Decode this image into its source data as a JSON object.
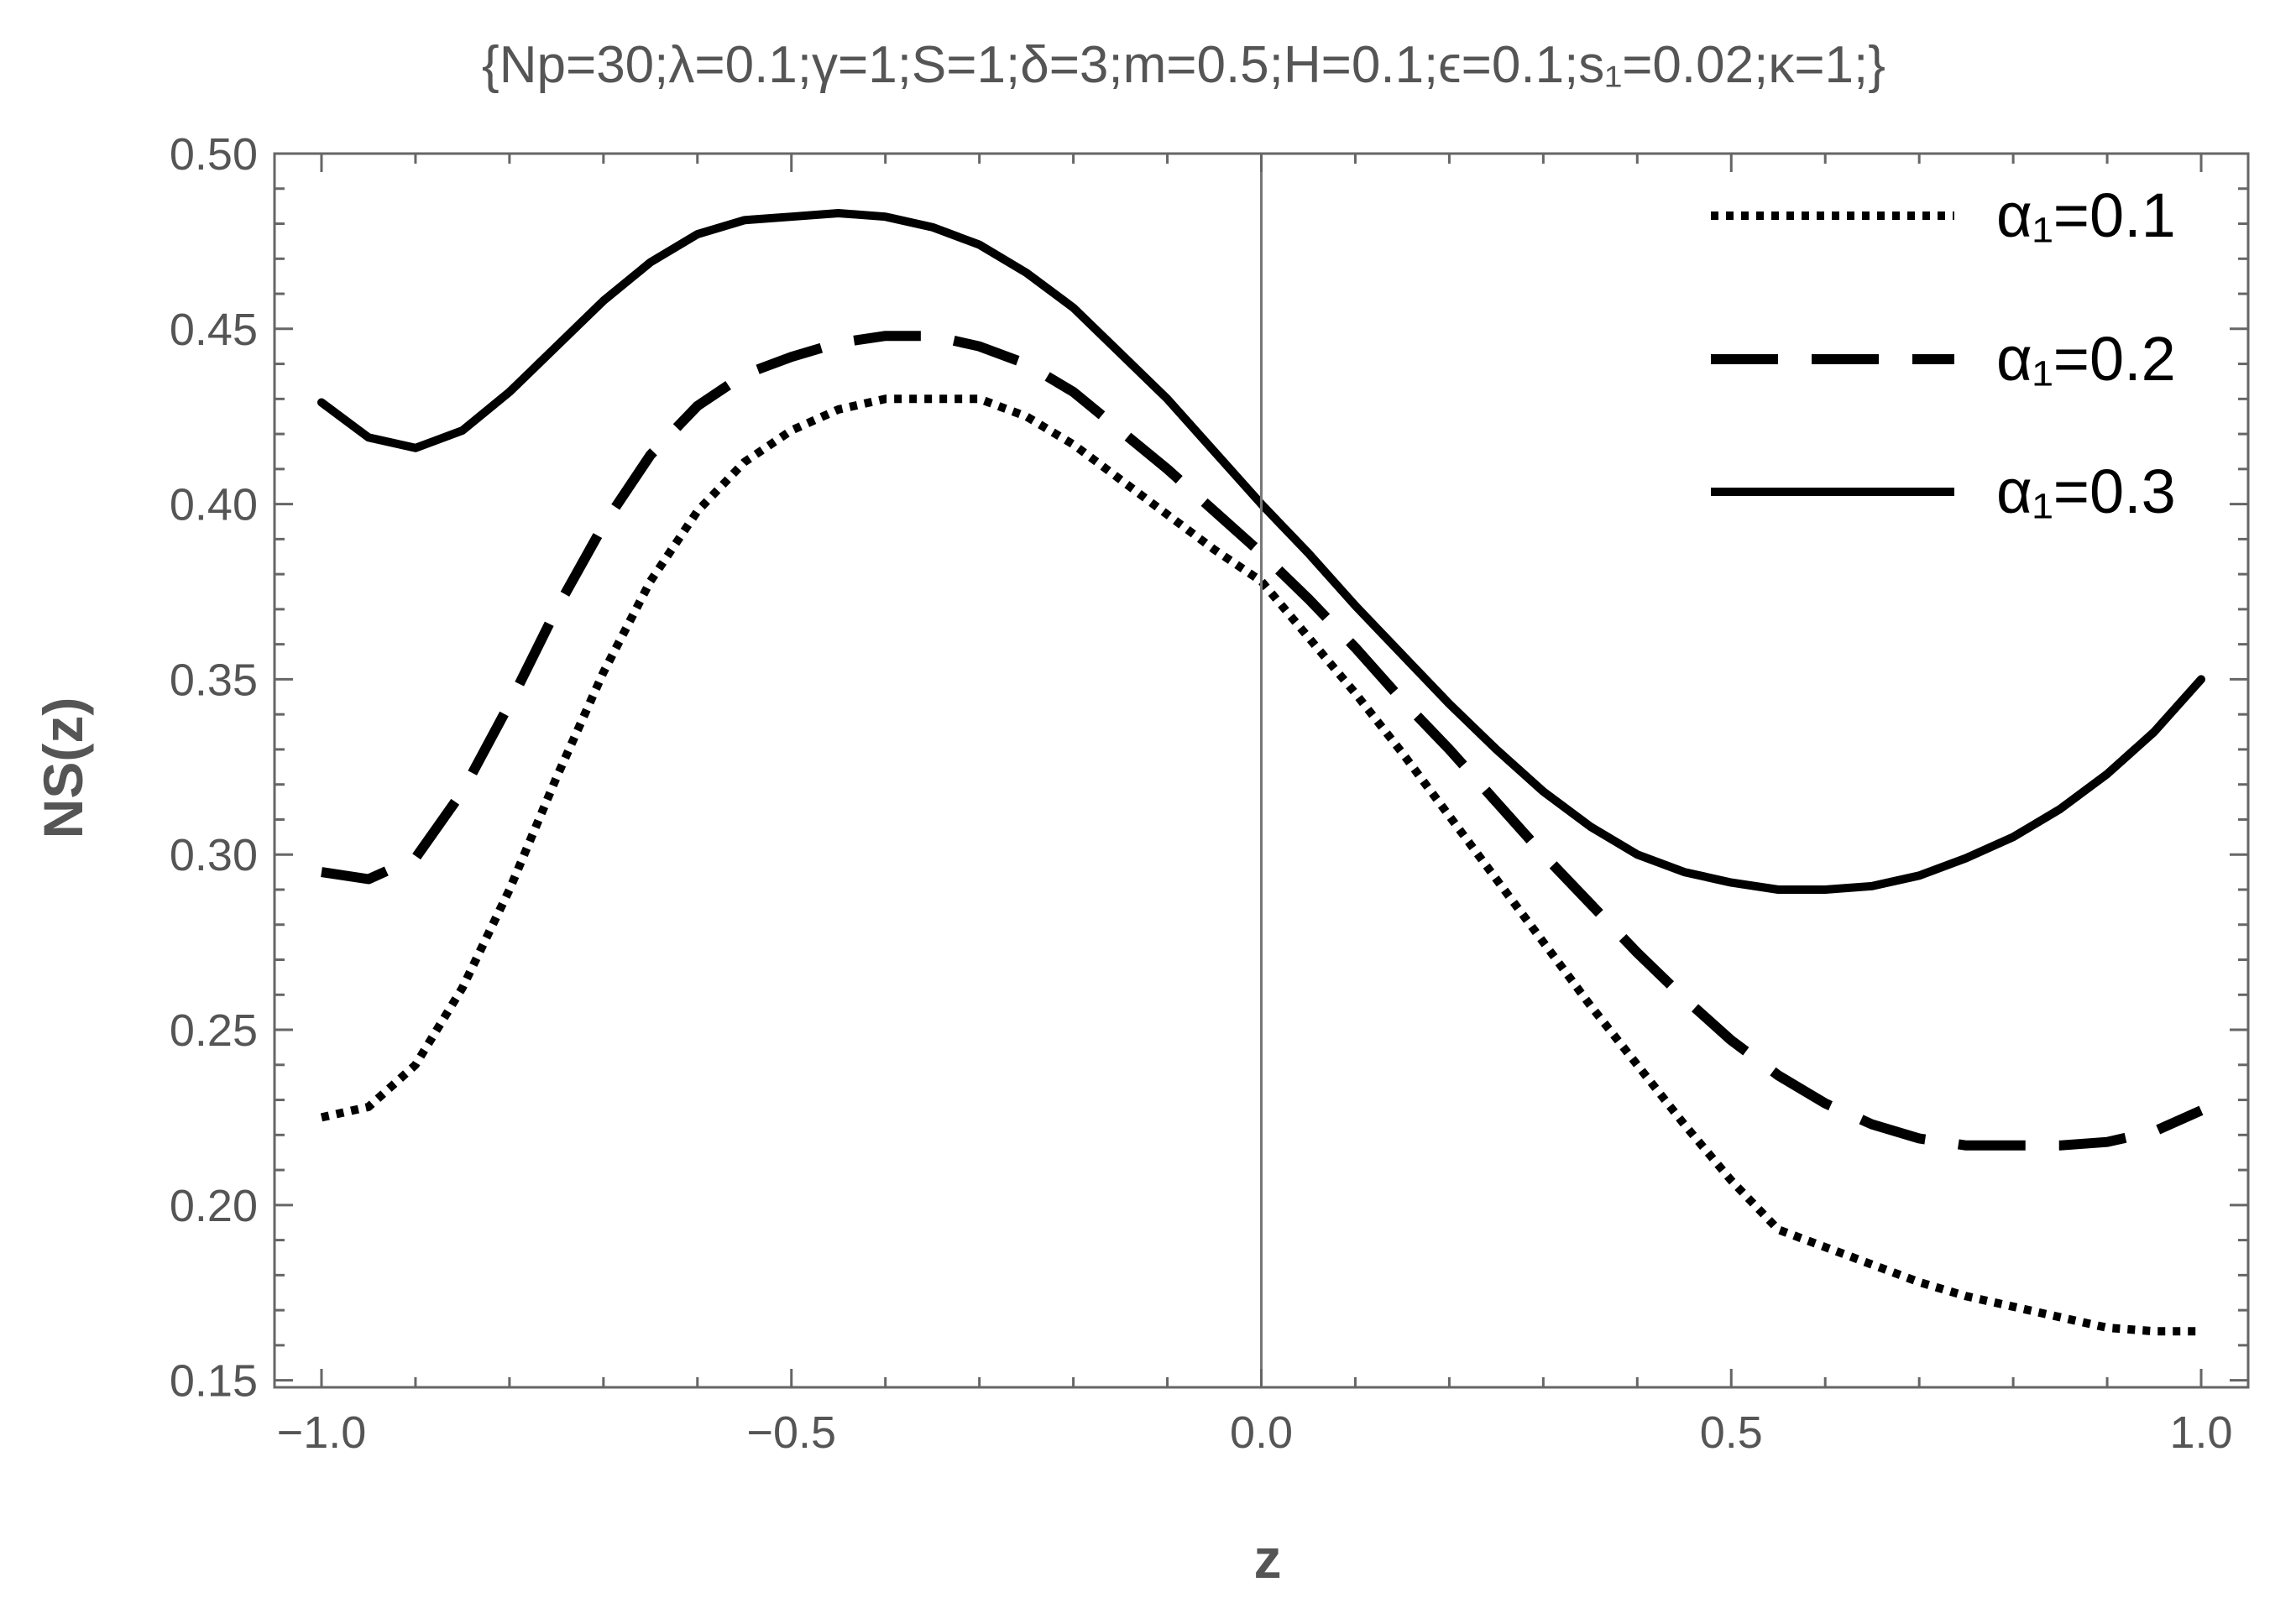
{
  "chart_data": {
    "type": "line",
    "title": "{Np=30;λ=0.1;γ=1;S=1;δ=3;m=0.5;H=0.1;ϵ=0.1;s₁=0.02;κ=1;}",
    "xlabel": "z",
    "ylabel": "NS(z)",
    "xlim": [
      -1.05,
      1.05
    ],
    "ylim": [
      0.148,
      0.5
    ],
    "xticks": [
      -1.0,
      -0.5,
      0.0,
      0.5,
      1.0
    ],
    "xtick_labels": [
      "−1.0",
      "−0.5",
      "0.0",
      "0.5",
      "1.0"
    ],
    "yticks": [
      0.15,
      0.2,
      0.25,
      0.3,
      0.35,
      0.4,
      0.45,
      0.5
    ],
    "ytick_labels": [
      "0.15",
      "0.20",
      "0.25",
      "0.30",
      "0.35",
      "0.40",
      "0.45",
      "0.50"
    ],
    "grid": false,
    "legend_position": "top-right",
    "series": [
      {
        "name": "α₁=0.1",
        "style": "dotted",
        "color": "#000000",
        "x": [
          -1.0,
          -0.95,
          -0.9,
          -0.85,
          -0.8,
          -0.75,
          -0.7,
          -0.65,
          -0.6,
          -0.55,
          -0.5,
          -0.45,
          -0.4,
          -0.35,
          -0.3,
          -0.25,
          -0.2,
          -0.15,
          -0.1,
          -0.05,
          0.0,
          0.05,
          0.1,
          0.15,
          0.2,
          0.25,
          0.3,
          0.35,
          0.4,
          0.45,
          0.5,
          0.55,
          0.6,
          0.65,
          0.7,
          0.75,
          0.8,
          0.85,
          0.9,
          0.95,
          1.0
        ],
        "y": [
          0.225,
          0.228,
          0.24,
          0.262,
          0.29,
          0.322,
          0.352,
          0.378,
          0.398,
          0.412,
          0.421,
          0.427,
          0.43,
          0.43,
          0.43,
          0.425,
          0.417,
          0.407,
          0.397,
          0.387,
          0.378,
          0.362,
          0.346,
          0.329,
          0.311,
          0.293,
          0.275,
          0.257,
          0.24,
          0.223,
          0.207,
          0.193,
          0.188,
          0.183,
          0.178,
          0.174,
          0.171,
          0.168,
          0.165,
          0.164,
          0.164
        ]
      },
      {
        "name": "α₁=0.2",
        "style": "dashed",
        "color": "#000000",
        "x": [
          -1.0,
          -0.95,
          -0.9,
          -0.85,
          -0.8,
          -0.75,
          -0.7,
          -0.65,
          -0.6,
          -0.55,
          -0.5,
          -0.45,
          -0.4,
          -0.35,
          -0.3,
          -0.25,
          -0.2,
          -0.15,
          -0.1,
          -0.05,
          0.0,
          0.05,
          0.1,
          0.15,
          0.2,
          0.25,
          0.3,
          0.35,
          0.4,
          0.45,
          0.5,
          0.55,
          0.6,
          0.65,
          0.7,
          0.75,
          0.8,
          0.85,
          0.9,
          0.95,
          1.0
        ],
        "y": [
          0.295,
          0.293,
          0.299,
          0.318,
          0.343,
          0.37,
          0.394,
          0.414,
          0.428,
          0.437,
          0.442,
          0.446,
          0.448,
          0.448,
          0.445,
          0.44,
          0.432,
          0.421,
          0.41,
          0.398,
          0.386,
          0.373,
          0.359,
          0.344,
          0.33,
          0.315,
          0.3,
          0.286,
          0.272,
          0.259,
          0.247,
          0.237,
          0.229,
          0.223,
          0.219,
          0.217,
          0.217,
          0.217,
          0.218,
          0.221,
          0.227
        ]
      },
      {
        "name": "α₁=0.3",
        "style": "solid",
        "color": "#000000",
        "x": [
          -1.0,
          -0.95,
          -0.9,
          -0.85,
          -0.8,
          -0.75,
          -0.7,
          -0.65,
          -0.6,
          -0.55,
          -0.5,
          -0.45,
          -0.4,
          -0.35,
          -0.3,
          -0.25,
          -0.2,
          -0.15,
          -0.1,
          -0.05,
          0.0,
          0.05,
          0.1,
          0.15,
          0.2,
          0.25,
          0.3,
          0.35,
          0.4,
          0.45,
          0.5,
          0.55,
          0.6,
          0.65,
          0.7,
          0.75,
          0.8,
          0.85,
          0.9,
          0.95,
          1.0
        ],
        "y": [
          0.429,
          0.419,
          0.416,
          0.421,
          0.432,
          0.445,
          0.458,
          0.469,
          0.477,
          0.481,
          0.482,
          0.483,
          0.482,
          0.479,
          0.474,
          0.466,
          0.456,
          0.443,
          0.43,
          0.415,
          0.4,
          0.386,
          0.371,
          0.357,
          0.343,
          0.33,
          0.318,
          0.308,
          0.3,
          0.295,
          0.292,
          0.29,
          0.29,
          0.291,
          0.294,
          0.299,
          0.305,
          0.313,
          0.323,
          0.335,
          0.35
        ]
      }
    ]
  }
}
